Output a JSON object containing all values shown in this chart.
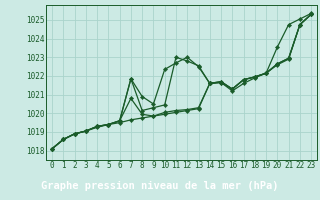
{
  "background_color": "#cceae4",
  "grid_color": "#aad4cc",
  "line_color": "#1a5c2a",
  "marker_color": "#1a5c2a",
  "title": "Graphe pression niveau de la mer (hPa)",
  "ylim": [
    1017.5,
    1025.8
  ],
  "xlim": [
    -0.5,
    23.5
  ],
  "yticks": [
    1018,
    1019,
    1020,
    1021,
    1022,
    1023,
    1024,
    1025
  ],
  "xticks": [
    0,
    1,
    2,
    3,
    4,
    5,
    6,
    7,
    8,
    9,
    10,
    11,
    12,
    13,
    14,
    15,
    16,
    17,
    18,
    19,
    20,
    21,
    22,
    23
  ],
  "series": [
    [
      1018.1,
      1018.6,
      1018.9,
      1019.05,
      1019.25,
      1019.4,
      1019.5,
      1019.65,
      1019.75,
      1019.85,
      1019.95,
      1020.05,
      1020.15,
      1020.25,
      1021.6,
      1021.7,
      1021.3,
      1021.8,
      1021.95,
      1022.15,
      1022.65,
      1022.95,
      1024.75,
      1025.3
    ],
    [
      1018.1,
      1018.6,
      1018.9,
      1019.05,
      1019.3,
      1019.4,
      1019.6,
      1020.8,
      1019.95,
      1019.85,
      1020.05,
      1020.15,
      1020.2,
      1020.3,
      1021.6,
      1021.7,
      1021.3,
      1021.8,
      1021.95,
      1022.15,
      1022.65,
      1022.95,
      1024.75,
      1025.3
    ],
    [
      1018.1,
      1018.6,
      1018.9,
      1019.05,
      1019.3,
      1019.4,
      1019.6,
      1021.85,
      1020.9,
      1020.5,
      1022.35,
      1022.7,
      1023.0,
      1022.5,
      1021.6,
      1021.65,
      1021.3,
      1021.8,
      1021.95,
      1022.15,
      1022.6,
      1022.9,
      1024.75,
      1025.3
    ],
    [
      1018.1,
      1018.6,
      1018.9,
      1019.05,
      1019.3,
      1019.4,
      1019.6,
      1021.85,
      1020.15,
      1020.3,
      1020.45,
      1023.0,
      1022.8,
      1022.55,
      1021.6,
      1021.65,
      1021.2,
      1021.6,
      1021.9,
      1022.15,
      1023.55,
      1024.75,
      1025.05,
      1025.35
    ]
  ],
  "linewidth": 0.9,
  "markersize": 2.2,
  "tick_fontsize": 5.5,
  "title_fontsize": 7.5,
  "title_bg": "#1a5c2a",
  "title_fg": "#ffffff",
  "bottom_area_color": "#cceae4"
}
